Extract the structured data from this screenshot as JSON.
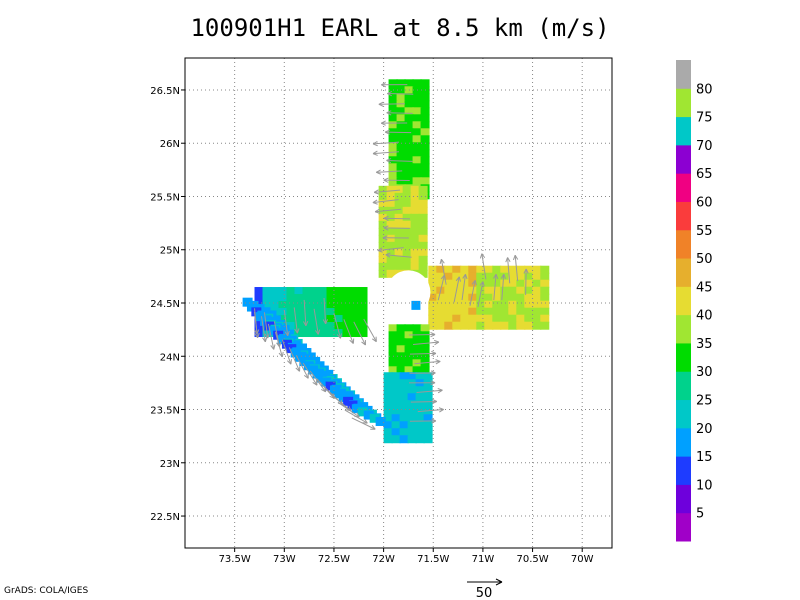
{
  "title": "100901H1 EARL at 8.5 km (m/s)",
  "credit": "GrADS: COLA/IGES",
  "chart_data": {
    "type": "heatmap",
    "title": "100901H1 EARL at 8.5 km (m/s)",
    "storm": "EARL",
    "level": "8.5 km",
    "units": "m/s",
    "xlim": [
      -74.0,
      -69.7
    ],
    "ylim": [
      22.2,
      26.8
    ],
    "x_ticks": [
      -73.5,
      -73.0,
      -72.5,
      -72.0,
      -71.5,
      -71.0,
      -70.5,
      -70.0
    ],
    "x_tick_labels": [
      "73.5W",
      "73W",
      "72.5W",
      "72W",
      "71.5W",
      "71W",
      "70.5W",
      "70W"
    ],
    "y_ticks": [
      22.5,
      23.0,
      23.5,
      24.0,
      24.5,
      25.0,
      25.5,
      26.0,
      26.5
    ],
    "y_tick_labels": [
      "22.5N",
      "23N",
      "23.5N",
      "24N",
      "24.5N",
      "25N",
      "25.5N",
      "26N",
      "26.5N"
    ],
    "grid": true,
    "colorbar": {
      "levels": [
        5,
        10,
        15,
        20,
        25,
        30,
        35,
        40,
        45,
        50,
        55,
        60,
        65,
        70,
        75,
        80
      ],
      "colors": [
        "#a000c8",
        "#6e00dc",
        "#1e3cff",
        "#00a0ff",
        "#00c8c8",
        "#00d28c",
        "#00dc00",
        "#a0e632",
        "#e6dc32",
        "#e6af2d",
        "#f08228",
        "#fa3c3c",
        "#f00082",
        "#8c00d2",
        "#00c8c8",
        "#a0e632",
        "#aaaaaa"
      ]
    },
    "reference_vector": {
      "value": 50,
      "label": "50"
    },
    "wind_field": [
      {
        "leg": "north",
        "lon_range": [
          -71.95,
          -71.6
        ],
        "lat_range": [
          25.5,
          26.6
        ],
        "speed": 34
      },
      {
        "leg": "north-inner",
        "lon_range": [
          -72.05,
          -71.6
        ],
        "lat_range": [
          24.8,
          25.6
        ],
        "speed": 40
      },
      {
        "leg": "east",
        "lon_range": [
          -71.55,
          -70.4
        ],
        "lat_range": [
          24.3,
          24.85
        ],
        "speed": 42
      },
      {
        "leg": "west",
        "lon_range": [
          -73.3,
          -72.2
        ],
        "lat_range": [
          24.25,
          24.65
        ],
        "speed": 24
      },
      {
        "leg": "south",
        "lon_range": [
          -71.95,
          -71.55
        ],
        "lat_range": [
          23.8,
          24.3
        ],
        "speed": 33
      },
      {
        "leg": "south-outer",
        "lon_range": [
          -72.0,
          -71.55
        ],
        "lat_range": [
          23.25,
          23.85
        ],
        "speed": 22
      },
      {
        "leg": "southwest-arc",
        "lon_range": [
          -73.5,
          -72.3
        ],
        "lat_range": [
          23.35,
          24.65
        ],
        "speed": 19
      },
      {
        "leg": "eye",
        "lon": -71.75,
        "lat": 24.6,
        "speed": 10
      }
    ]
  }
}
